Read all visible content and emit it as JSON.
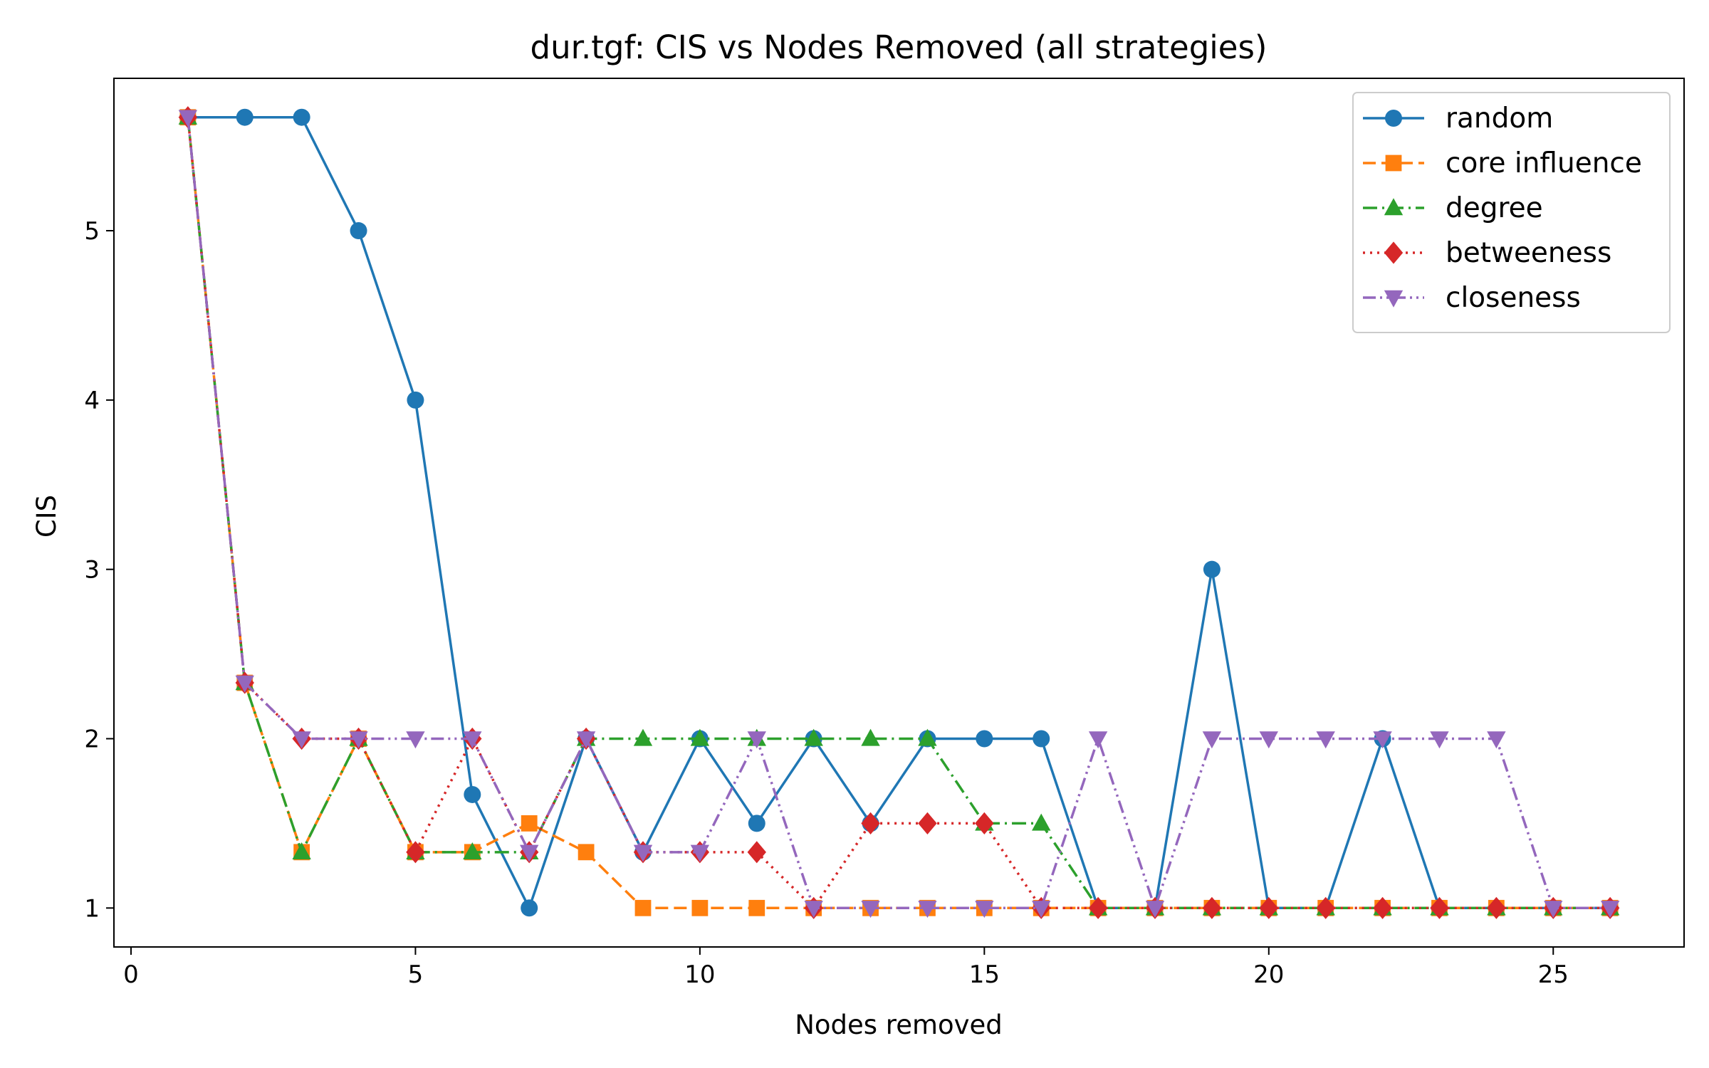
{
  "chart_data": {
    "type": "line",
    "title": "dur.tgf: CIS vs Nodes Removed (all strategies)",
    "xlabel": "Nodes removed",
    "ylabel": "CIS",
    "xlim": [
      -0.3,
      27.3
    ],
    "ylim": [
      0.77,
      5.9
    ],
    "xticks": [
      0,
      5,
      10,
      15,
      20,
      25
    ],
    "yticks": [
      1,
      2,
      3,
      4,
      5
    ],
    "grid": false,
    "legend_position": "top-right",
    "x": [
      1,
      2,
      3,
      4,
      5,
      6,
      7,
      8,
      9,
      10,
      11,
      12,
      13,
      14,
      15,
      16,
      17,
      18,
      19,
      20,
      21,
      22,
      23,
      24,
      25,
      26
    ],
    "series": [
      {
        "name": "random",
        "color": "#1f77b4",
        "marker": "circle",
        "linestyle": "solid",
        "values": [
          5.67,
          5.67,
          5.67,
          5.0,
          4.0,
          1.67,
          1.0,
          2.0,
          1.33,
          2.0,
          1.5,
          2.0,
          1.5,
          2.0,
          2.0,
          2.0,
          1.0,
          1.0,
          3.0,
          1.0,
          1.0,
          2.0,
          1.0,
          1.0,
          1.0,
          1.0
        ]
      },
      {
        "name": "core influence",
        "color": "#ff7f0e",
        "marker": "square",
        "linestyle": "dashed",
        "values": [
          5.67,
          2.33,
          1.33,
          2.0,
          1.33,
          1.33,
          1.5,
          1.33,
          1.0,
          1.0,
          1.0,
          1.0,
          1.0,
          1.0,
          1.0,
          1.0,
          1.0,
          1.0,
          1.0,
          1.0,
          1.0,
          1.0,
          1.0,
          1.0,
          1.0,
          1.0
        ]
      },
      {
        "name": "degree",
        "color": "#2ca02c",
        "marker": "triangle-up",
        "linestyle": "dashdot",
        "values": [
          5.67,
          2.33,
          1.33,
          2.0,
          1.33,
          1.33,
          1.33,
          2.0,
          2.0,
          2.0,
          2.0,
          2.0,
          2.0,
          2.0,
          1.5,
          1.5,
          1.0,
          1.0,
          1.0,
          1.0,
          1.0,
          1.0,
          1.0,
          1.0,
          1.0,
          1.0
        ]
      },
      {
        "name": "betweeness",
        "color": "#d62728",
        "marker": "diamond",
        "linestyle": "dotted",
        "values": [
          5.67,
          2.33,
          2.0,
          2.0,
          1.33,
          2.0,
          1.33,
          2.0,
          1.33,
          1.33,
          1.33,
          1.0,
          1.5,
          1.5,
          1.5,
          1.0,
          1.0,
          1.0,
          1.0,
          1.0,
          1.0,
          1.0,
          1.0,
          1.0,
          1.0,
          1.0
        ]
      },
      {
        "name": "closeness",
        "color": "#9467bd",
        "marker": "triangle-down",
        "linestyle": "dashdotdot",
        "values": [
          5.67,
          2.33,
          2.0,
          2.0,
          2.0,
          2.0,
          1.33,
          2.0,
          1.33,
          1.33,
          2.0,
          1.0,
          1.0,
          1.0,
          1.0,
          1.0,
          2.0,
          1.0,
          2.0,
          2.0,
          2.0,
          2.0,
          2.0,
          2.0,
          1.0,
          1.0
        ]
      }
    ]
  }
}
